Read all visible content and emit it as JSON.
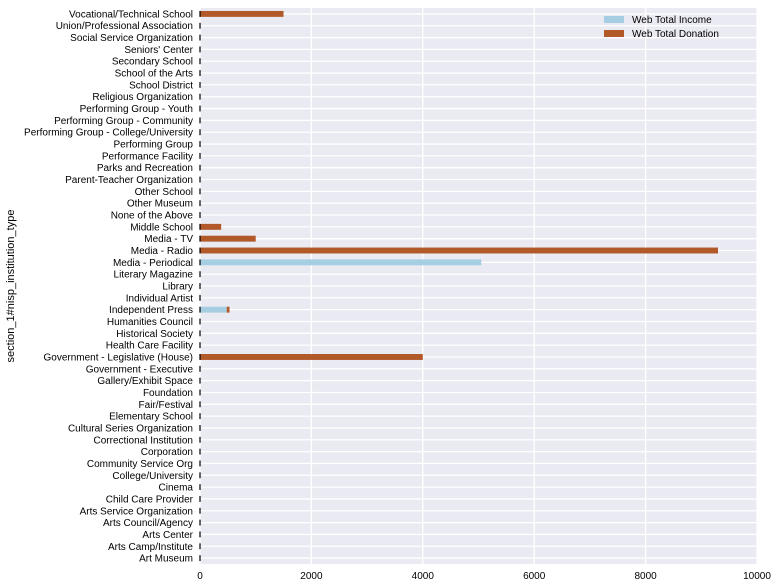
{
  "chart_data": {
    "type": "bar",
    "orientation": "horizontal",
    "stacked": true,
    "ylabel": "section_1#nisp_institution_type",
    "xlabel": "",
    "xlim": [
      0,
      10000
    ],
    "xticks": [
      "0",
      "2000",
      "4000",
      "6000",
      "8000",
      "10000"
    ],
    "grid": true,
    "legend_position": "top-right",
    "categories": [
      "Art Museum",
      "Arts Camp/Institute",
      "Arts Center",
      "Arts Council/Agency",
      "Arts Service Organization",
      "Child Care Provider",
      "Cinema",
      "College/University",
      "Community Service Org",
      "Corporation",
      "Correctional Institution",
      "Cultural Series Organization",
      "Elementary School",
      "Fair/Festival",
      "Foundation",
      "Gallery/Exhibit Space",
      "Government - Executive",
      "Government - Legislative (House)",
      "Health Care Facility",
      "Historical Society",
      "Humanities Council",
      "Independent Press",
      "Individual Artist",
      "Library",
      "Literary Magazine",
      "Media - Periodical",
      "Media - Radio",
      "Media - TV",
      "Middle School",
      "None of the Above",
      "Other Museum",
      "Other School",
      "Parent-Teacher Organization",
      "Parks and Recreation",
      "Performance Facility",
      "Performing Group",
      "Performing Group - College/University",
      "Performing Group - Community",
      "Performing Group - Youth",
      "Religious Organization",
      "School District",
      "School of the Arts",
      "Secondary School",
      "Seniors' Center",
      "Social Service Organization",
      "Union/Professional Association",
      "Vocational/Technical School"
    ],
    "series": [
      {
        "name": "Web Total Income",
        "color": "#a6cee3",
        "values": [
          0,
          0,
          0,
          0,
          0,
          0,
          0,
          0,
          0,
          0,
          0,
          0,
          0,
          0,
          0,
          0,
          0,
          0,
          0,
          0,
          0,
          480,
          0,
          0,
          0,
          5050,
          0,
          0,
          0,
          0,
          0,
          0,
          0,
          0,
          0,
          0,
          0,
          0,
          0,
          0,
          0,
          0,
          0,
          0,
          0,
          0,
          0
        ]
      },
      {
        "name": "Web Total Donation",
        "color": "#b15928",
        "values": [
          0,
          0,
          0,
          0,
          0,
          0,
          0,
          0,
          0,
          0,
          0,
          0,
          0,
          0,
          0,
          0,
          0,
          4000,
          0,
          0,
          0,
          50,
          0,
          0,
          0,
          0,
          9300,
          1000,
          380,
          0,
          0,
          0,
          0,
          0,
          0,
          0,
          0,
          0,
          0,
          0,
          0,
          0,
          0,
          0,
          0,
          0,
          1500
        ]
      }
    ]
  }
}
